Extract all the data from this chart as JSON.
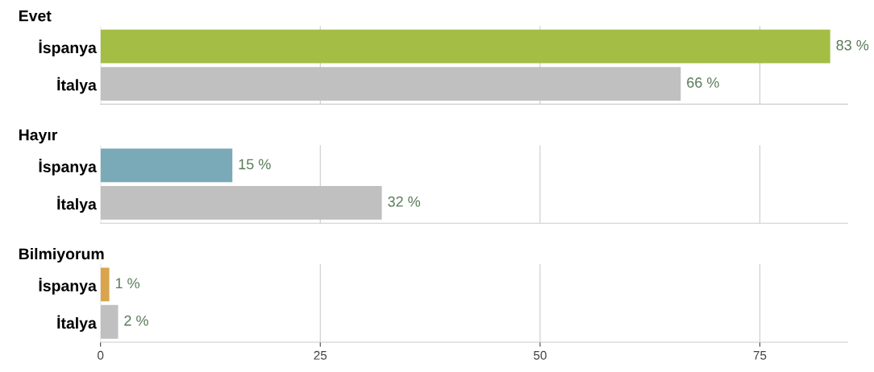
{
  "chart_data": [
    {
      "type": "bar",
      "orientation": "horizontal",
      "title": "Evet",
      "categories": [
        "İspanya",
        "İtalya"
      ],
      "values": [
        83,
        66
      ],
      "colors": [
        "#a4bd45",
        "#c0c0c0"
      ],
      "value_labels": [
        "83 %",
        "66 %"
      ],
      "xlim": [
        0,
        85
      ],
      "xticks": [
        0,
        25,
        50,
        75
      ],
      "grid": "x",
      "tick_labels": "y"
    },
    {
      "type": "bar",
      "orientation": "horizontal",
      "title": "Hayır",
      "categories": [
        "İspanya",
        "İtalya"
      ],
      "values": [
        15,
        32
      ],
      "colors": [
        "#7aaab8",
        "#c0c0c0"
      ],
      "value_labels": [
        "15 %",
        "32 %"
      ],
      "xlim": [
        0,
        85
      ],
      "xticks": [
        0,
        25,
        50,
        75
      ],
      "grid": "x",
      "tick_labels": "y"
    },
    {
      "type": "bar",
      "orientation": "horizontal",
      "title": "Bilmiyorum",
      "categories": [
        "İspanya",
        "İtalya"
      ],
      "values": [
        1,
        2
      ],
      "colors": [
        "#d9a44c",
        "#c0c0c0"
      ],
      "value_labels": [
        "1 %",
        "2 %"
      ],
      "xlim": [
        0,
        85
      ],
      "xticks": [
        0,
        25,
        50,
        75
      ],
      "grid": "x"
    }
  ]
}
